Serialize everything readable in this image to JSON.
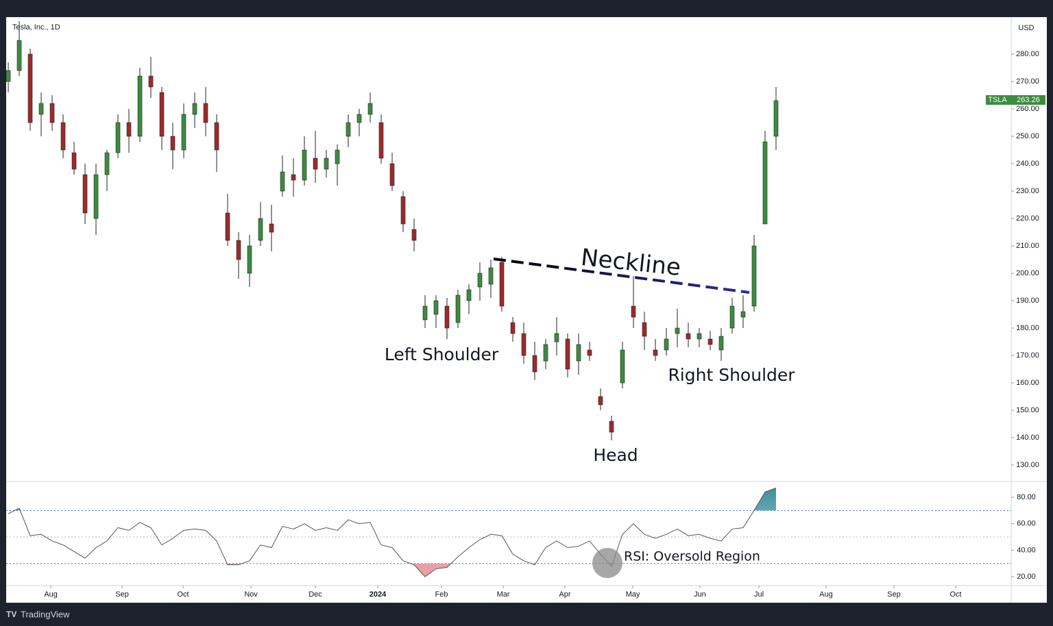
{
  "chart_data": [
    {
      "type": "candlestick",
      "title": "Tesla, Inc., 1D",
      "currency": "USD",
      "symbol": "TSLA",
      "last_price": 263.26,
      "up_color": "#3d8b40",
      "down_color": "#9e2a2b",
      "wick_color": "#222222",
      "candles": [
        [
          270,
          277,
          266,
          274
        ],
        [
          274,
          292,
          272,
          285
        ],
        [
          280,
          282,
          252,
          255
        ],
        [
          258,
          266,
          250,
          262
        ],
        [
          262,
          265,
          252,
          255
        ],
        [
          255,
          258,
          242,
          245
        ],
        [
          244,
          248,
          236,
          238
        ],
        [
          236,
          240,
          218,
          222
        ],
        [
          220,
          240,
          214,
          236
        ],
        [
          236,
          245,
          230,
          244
        ],
        [
          244,
          258,
          242,
          255
        ],
        [
          255,
          260,
          244,
          250
        ],
        [
          250,
          275,
          248,
          272
        ],
        [
          272,
          279,
          264,
          268
        ],
        [
          266,
          268,
          245,
          250
        ],
        [
          250,
          255,
          238,
          245
        ],
        [
          245,
          262,
          242,
          258
        ],
        [
          258,
          266,
          253,
          262
        ],
        [
          262,
          268,
          250,
          255
        ],
        [
          255,
          258,
          237,
          245
        ],
        [
          222,
          229,
          210,
          212
        ],
        [
          212,
          215,
          198,
          205
        ],
        [
          200,
          214,
          195,
          210
        ],
        [
          212,
          226,
          210,
          220
        ],
        [
          218,
          225,
          208,
          215
        ],
        [
          230,
          243,
          228,
          237
        ],
        [
          236,
          242,
          228,
          234
        ],
        [
          234,
          250,
          232,
          245
        ],
        [
          242,
          252,
          233,
          238
        ],
        [
          238,
          245,
          235,
          242
        ],
        [
          240,
          247,
          232,
          245
        ],
        [
          250,
          258,
          246,
          255
        ],
        [
          255,
          260,
          250,
          258
        ],
        [
          258,
          266,
          255,
          262
        ],
        [
          255,
          258,
          240,
          242
        ],
        [
          240,
          244,
          230,
          232
        ],
        [
          228,
          230,
          215,
          218
        ],
        [
          216,
          220,
          208,
          212
        ],
        [
          183,
          192,
          180,
          188
        ],
        [
          185,
          192,
          180,
          190
        ],
        [
          188,
          191,
          176,
          180
        ],
        [
          182,
          194,
          180,
          192
        ],
        [
          190,
          196,
          185,
          194
        ],
        [
          195,
          204,
          190,
          200
        ],
        [
          196,
          205,
          191,
          202
        ],
        [
          204,
          206,
          186,
          188
        ],
        [
          182,
          184,
          175,
          178
        ],
        [
          178,
          182,
          167,
          170
        ],
        [
          170,
          175,
          161,
          164
        ],
        [
          168,
          176,
          165,
          174
        ],
        [
          175,
          184,
          170,
          178
        ],
        [
          176,
          178,
          162,
          165
        ],
        [
          168,
          178,
          163,
          174
        ],
        [
          172,
          175,
          168,
          170
        ],
        [
          155,
          158,
          150,
          152
        ],
        [
          146,
          148,
          139,
          142
        ],
        [
          160,
          175,
          158,
          172
        ],
        [
          188,
          199,
          180,
          184
        ],
        [
          182,
          186,
          172,
          177
        ],
        [
          172,
          176,
          168,
          170
        ],
        [
          172,
          180,
          170,
          176
        ],
        [
          178,
          187,
          173,
          180
        ],
        [
          178,
          182,
          173,
          176
        ],
        [
          176,
          180,
          173,
          178
        ],
        [
          176,
          179,
          172,
          174
        ],
        [
          172,
          180,
          168,
          177
        ],
        [
          180,
          191,
          178,
          188
        ],
        [
          184,
          192,
          180,
          186
        ],
        [
          188,
          214,
          186,
          210
        ],
        [
          218,
          252,
          218,
          248
        ],
        [
          250,
          268,
          245,
          263
        ]
      ],
      "xlim": [
        -0.19,
        91.44
      ],
      "ylim": [
        124,
        293.5
      ],
      "yticks": [
        {
          "value": 130,
          "label": "130.00"
        },
        {
          "value": 140,
          "label": "140.00"
        },
        {
          "value": 150,
          "label": "150.00"
        },
        {
          "value": 160,
          "label": "160.00"
        },
        {
          "value": 170,
          "label": "170.00"
        },
        {
          "value": 180,
          "label": "180.00"
        },
        {
          "value": 190,
          "label": "190.00"
        },
        {
          "value": 200,
          "label": "200.00"
        },
        {
          "value": 210,
          "label": "210.00"
        },
        {
          "value": 220,
          "label": "220.00"
        },
        {
          "value": 230,
          "label": "230.00"
        },
        {
          "value": 240,
          "label": "240.00"
        },
        {
          "value": 250,
          "label": "250.00"
        },
        {
          "value": 260,
          "label": "260.00"
        },
        {
          "value": 270,
          "label": "270.00"
        },
        {
          "value": 280,
          "label": "280.00"
        }
      ],
      "xticks": [
        {
          "value": 3.88,
          "label": "Aug"
        },
        {
          "value": 10.38,
          "label": "Sep"
        },
        {
          "value": 15.94,
          "label": "Oct"
        },
        {
          "value": 22.13,
          "label": "Nov"
        },
        {
          "value": 28,
          "label": "Dec"
        },
        {
          "value": 33.69,
          "label": "2024"
        },
        {
          "value": 39.5,
          "label": "Feb"
        },
        {
          "value": 45.13,
          "label": "Mar"
        },
        {
          "value": 50.75,
          "label": "Apr"
        },
        {
          "value": 56.94,
          "label": "May"
        },
        {
          "value": 63.06,
          "label": "Jun"
        },
        {
          "value": 68.44,
          "label": "Jul"
        },
        {
          "value": 74.56,
          "label": "Aug"
        },
        {
          "value": 80.75,
          "label": "Sep"
        },
        {
          "value": 86.38,
          "label": "Oct"
        }
      ],
      "neckline": {
        "x": [
          44.25,
          67.56
        ],
        "y": [
          205.25,
          193
        ]
      },
      "annotations": [
        "Neckline",
        "Left Shoulder",
        "Right Shoulder",
        "Head"
      ]
    },
    {
      "type": "line",
      "color": "#555555",
      "values": [
        67.6,
        71.7,
        51,
        52,
        47,
        44,
        39,
        34,
        42,
        47,
        57,
        55,
        61,
        57,
        44,
        49,
        55,
        56,
        55,
        47,
        29,
        29,
        32,
        44,
        42,
        58,
        56,
        60,
        55,
        57,
        55,
        63,
        60,
        61,
        44,
        42,
        32,
        29,
        20,
        26,
        27,
        35,
        42,
        48,
        52,
        51,
        37,
        32,
        29,
        42,
        47,
        42,
        43,
        47,
        37,
        28,
        52,
        60,
        52,
        49,
        52,
        56,
        51,
        52,
        49,
        47,
        56,
        57,
        70,
        84,
        87
      ],
      "ylim": [
        13.3,
        91.9
      ],
      "yticks": [
        {
          "value": 20,
          "label": "20.00"
        },
        {
          "value": 40,
          "label": "40.00"
        },
        {
          "value": 60,
          "label": "60.00"
        },
        {
          "value": 80,
          "label": "80.00"
        }
      ],
      "levels": [
        70,
        50,
        30
      ],
      "level_color": "#2962ff",
      "annotation": "RSI: Oversold Region"
    }
  ],
  "footer": "TradingView"
}
